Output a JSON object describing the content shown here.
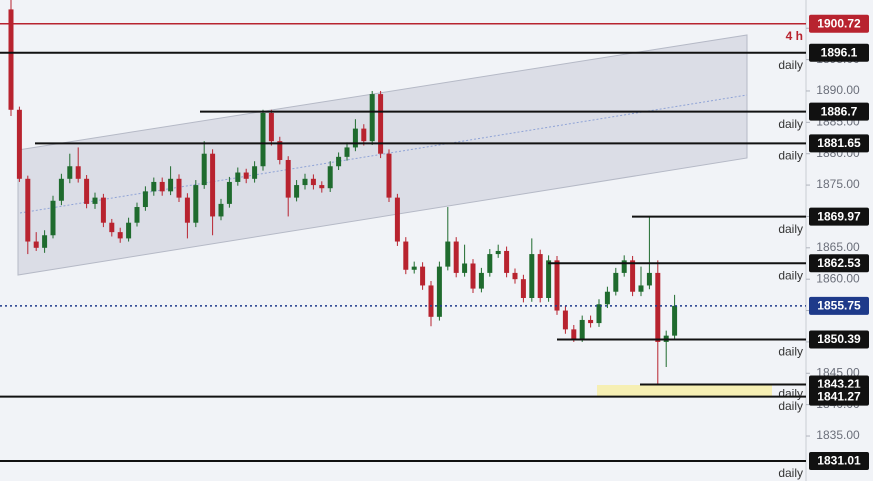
{
  "chart_data": {
    "type": "candlestick",
    "ylim": [
      1827.83,
      1904.5
    ],
    "yticks": [
      {
        "value": 1835,
        "label": "1835.00"
      },
      {
        "value": 1840,
        "label": "1840.00"
      },
      {
        "value": 1845,
        "label": "1845.00"
      },
      {
        "value": 1850,
        "label": "1850.00"
      },
      {
        "value": 1855,
        "label": "1855.00"
      },
      {
        "value": 1860,
        "label": "1860.00"
      },
      {
        "value": 1865,
        "label": "1865.00"
      },
      {
        "value": 1870,
        "label": "1870.00"
      },
      {
        "value": 1875,
        "label": "1875.00"
      },
      {
        "value": 1880,
        "label": "1880.00"
      },
      {
        "value": 1885,
        "label": "1885.00"
      },
      {
        "value": 1890,
        "label": "1890.00"
      },
      {
        "value": 1895,
        "label": "1895.00"
      },
      {
        "value": 1900,
        "label": "1900.00"
      }
    ],
    "up_color": "#1f6b2e",
    "down_color": "#b8232f",
    "candles": [
      [
        1903,
        1904.5,
        1886,
        1887
      ],
      [
        1887,
        1887.5,
        1875.5,
        1876
      ],
      [
        1876,
        1876.5,
        1864,
        1866
      ],
      [
        1866,
        1867.5,
        1864.5,
        1865
      ],
      [
        1865,
        1867.8,
        1864.2,
        1867
      ],
      [
        1867,
        1873.3,
        1866.5,
        1872.5
      ],
      [
        1872.5,
        1876.8,
        1871.8,
        1876
      ],
      [
        1876,
        1880,
        1875.3,
        1878
      ],
      [
        1878,
        1881,
        1875.4,
        1876
      ],
      [
        1876,
        1876.6,
        1871.3,
        1872
      ],
      [
        1872,
        1873.8,
        1871.2,
        1873
      ],
      [
        1873,
        1873.6,
        1868.3,
        1869
      ],
      [
        1869,
        1869.6,
        1866.8,
        1867.5
      ],
      [
        1867.5,
        1868.2,
        1865.8,
        1866.5
      ],
      [
        1866.5,
        1869.8,
        1866,
        1869
      ],
      [
        1869,
        1872.2,
        1868.4,
        1871.5
      ],
      [
        1871.5,
        1874.8,
        1870.9,
        1874
      ],
      [
        1874,
        1876.2,
        1873.3,
        1875.5
      ],
      [
        1875.5,
        1876.2,
        1873.3,
        1874
      ],
      [
        1874,
        1878,
        1873.4,
        1876
      ],
      [
        1876,
        1876.7,
        1872.3,
        1873
      ],
      [
        1873,
        1873.7,
        1866.5,
        1869
      ],
      [
        1869,
        1875.8,
        1868.3,
        1875
      ],
      [
        1875,
        1882,
        1874.4,
        1880
      ],
      [
        1880,
        1880.7,
        1867,
        1870
      ],
      [
        1870,
        1872.8,
        1869.4,
        1872
      ],
      [
        1872,
        1876.3,
        1871.4,
        1875.5
      ],
      [
        1875.5,
        1877.8,
        1874.9,
        1877
      ],
      [
        1877,
        1877.6,
        1875.3,
        1876
      ],
      [
        1876,
        1878.8,
        1875.4,
        1878
      ],
      [
        1878,
        1887,
        1877.3,
        1886.5
      ],
      [
        1886.5,
        1887,
        1881.3,
        1882
      ],
      [
        1882,
        1882.7,
        1878.3,
        1879
      ],
      [
        1879,
        1879.6,
        1870,
        1873
      ],
      [
        1873,
        1875.8,
        1872.4,
        1875
      ],
      [
        1875,
        1876.8,
        1874.3,
        1876
      ],
      [
        1876,
        1876.7,
        1874.3,
        1875
      ],
      [
        1875,
        1875.6,
        1873.8,
        1874.5
      ],
      [
        1874.5,
        1878.8,
        1873.9,
        1878
      ],
      [
        1878,
        1880.2,
        1877.4,
        1879.5
      ],
      [
        1879.5,
        1881.8,
        1878.9,
        1881
      ],
      [
        1881,
        1885.5,
        1880.4,
        1884
      ],
      [
        1884,
        1884.7,
        1881.3,
        1882
      ],
      [
        1882,
        1890,
        1881.4,
        1889.5
      ],
      [
        1889.5,
        1890,
        1879.3,
        1880
      ],
      [
        1880,
        1880.7,
        1872.3,
        1873
      ],
      [
        1873,
        1873.6,
        1865.3,
        1866
      ],
      [
        1866,
        1866.7,
        1860.8,
        1861.5
      ],
      [
        1861.5,
        1862.8,
        1860.9,
        1862
      ],
      [
        1862,
        1862.7,
        1858.3,
        1859
      ],
      [
        1859,
        1859.7,
        1852.5,
        1854
      ],
      [
        1854,
        1862.8,
        1853.4,
        1862
      ],
      [
        1862,
        1871.5,
        1861.4,
        1866
      ],
      [
        1866,
        1866.7,
        1860.3,
        1861
      ],
      [
        1861,
        1865.5,
        1860.4,
        1862.5
      ],
      [
        1862.5,
        1863.2,
        1857.8,
        1858.5
      ],
      [
        1858.5,
        1861.8,
        1857.9,
        1861
      ],
      [
        1861,
        1864.8,
        1860.4,
        1864
      ],
      [
        1864,
        1865.5,
        1863.4,
        1864.5
      ],
      [
        1864.5,
        1865.2,
        1860.3,
        1861
      ],
      [
        1861,
        1861.7,
        1859.3,
        1860
      ],
      [
        1860,
        1860.7,
        1856.3,
        1857
      ],
      [
        1857,
        1866.5,
        1856.4,
        1864
      ],
      [
        1864,
        1864.7,
        1856.3,
        1857
      ],
      [
        1857,
        1863.8,
        1856.4,
        1863
      ],
      [
        1863,
        1863.7,
        1854.3,
        1855
      ],
      [
        1855,
        1855.7,
        1851.3,
        1852
      ],
      [
        1852,
        1852.7,
        1850,
        1850.5
      ],
      [
        1850.5,
        1854.2,
        1850,
        1853.5
      ],
      [
        1853.5,
        1854.2,
        1852.3,
        1853
      ],
      [
        1853,
        1856.8,
        1852.4,
        1856
      ],
      [
        1856,
        1858.8,
        1855.4,
        1858
      ],
      [
        1858,
        1861.8,
        1857.4,
        1861
      ],
      [
        1861,
        1863.8,
        1860.4,
        1863
      ],
      [
        1863,
        1863.7,
        1857.3,
        1858
      ],
      [
        1858,
        1862,
        1857.3,
        1859
      ],
      [
        1859,
        1870,
        1858.4,
        1861
      ],
      [
        1861,
        1863,
        1843.2,
        1850
      ],
      [
        1850,
        1851.8,
        1846,
        1851
      ],
      [
        1851,
        1857.5,
        1850.4,
        1855.75
      ]
    ],
    "last_price": 1855.75,
    "levels": [
      {
        "price": 1900.72,
        "timeframe": "4 h"
      },
      {
        "price": 1896.1,
        "timeframe": "daily"
      },
      {
        "price": 1886.7,
        "timeframe": "daily"
      },
      {
        "price": 1881.65,
        "timeframe": "daily"
      },
      {
        "price": 1869.97,
        "timeframe": "daily"
      },
      {
        "price": 1862.53,
        "timeframe": "daily"
      },
      {
        "price": 1850.39,
        "timeframe": "daily"
      },
      {
        "price": 1843.21,
        "timeframe": "daily"
      },
      {
        "price": 1841.27,
        "timeframe": "daily"
      },
      {
        "price": 1831.01,
        "timeframe": "daily"
      }
    ]
  }
}
